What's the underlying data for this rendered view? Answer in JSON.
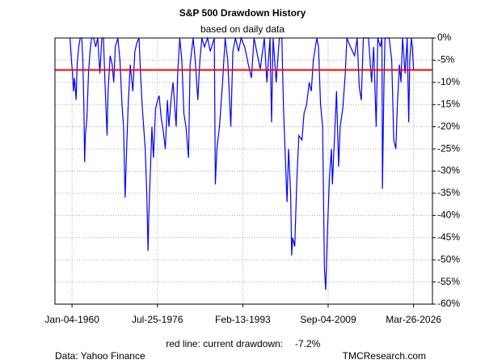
{
  "chart_data": {
    "type": "line",
    "title": "S&P 500 Drawdown History",
    "subtitle": "based on daily data",
    "annotation": "red line: current drawdown:",
    "source": "Data: Yahoo Finance",
    "credit": "TMCResearch.com",
    "xlim": [
      1956.7,
      2029.9
    ],
    "xticks": [
      {
        "value": 1960.01,
        "label": "Jan-04-1960"
      },
      {
        "value": 1976.56,
        "label": "Jul-25-1976"
      },
      {
        "value": 1993.12,
        "label": "Feb-13-1993"
      },
      {
        "value": 2009.67,
        "label": "Sep-04-2009"
      },
      {
        "value": 2026.23,
        "label": "Mar-26-2026"
      }
    ],
    "ylim": [
      -60,
      0
    ],
    "yticks": [
      {
        "value": 0,
        "label": "0%"
      },
      {
        "value": -5,
        "label": "-5%"
      },
      {
        "value": -10,
        "label": "-10%"
      },
      {
        "value": -15,
        "label": "-15%"
      },
      {
        "value": -20,
        "label": "-20%"
      },
      {
        "value": -25,
        "label": "-25%"
      },
      {
        "value": -30,
        "label": "-30%"
      },
      {
        "value": -35,
        "label": "-35%"
      },
      {
        "value": -40,
        "label": "-40%"
      },
      {
        "value": -45,
        "label": "-45%"
      },
      {
        "value": -50,
        "label": "-50%"
      },
      {
        "value": -55,
        "label": "-55%"
      },
      {
        "value": -60,
        "label": "-60%"
      }
    ],
    "grid": true,
    "reference_line": {
      "value": -7.2,
      "label": "-7.2%",
      "color": "#ff0000"
    },
    "series": [
      {
        "color": "#0000ff",
        "x": [
          1959.6,
          1959.9,
          1960.1,
          1960.3,
          1960.5,
          1960.8,
          1961.0,
          1961.3,
          1961.6,
          1961.9,
          1962.1,
          1962.3,
          1962.45,
          1962.6,
          1962.9,
          1963.2,
          1963.5,
          1963.8,
          1964.2,
          1964.6,
          1965.0,
          1965.4,
          1965.8,
          1966.1,
          1966.4,
          1966.8,
          1967.0,
          1967.4,
          1967.8,
          1968.1,
          1968.4,
          1968.9,
          1969.3,
          1969.7,
          1970.0,
          1970.3,
          1970.6,
          1970.9,
          1971.3,
          1971.8,
          1972.2,
          1972.6,
          1973.0,
          1973.3,
          1973.6,
          1973.9,
          1974.2,
          1974.5,
          1974.75,
          1974.9,
          1975.2,
          1975.5,
          1975.8,
          1976.2,
          1976.6,
          1976.9,
          1977.3,
          1977.7,
          1978.1,
          1978.5,
          1978.8,
          1979.2,
          1979.6,
          1980.2,
          1980.5,
          1980.9,
          1981.3,
          1981.7,
          1982.1,
          1982.6,
          1982.9,
          1983.5,
          1983.9,
          1984.4,
          1984.8,
          1985.2,
          1985.7,
          1986.3,
          1986.8,
          1987.6,
          1987.8,
          1988.1,
          1988.6,
          1989.2,
          1989.7,
          1990.2,
          1990.8,
          1991.2,
          1991.7,
          1992.3,
          1992.8,
          1993.5,
          1994.2,
          1994.8,
          1995.3,
          1996.5,
          1997.3,
          1997.8,
          1998.4,
          1998.7,
          1999.0,
          1999.6,
          2000.2,
          2000.7,
          2001.0,
          2001.3,
          2001.7,
          2002.0,
          2002.4,
          2002.6,
          2002.8,
          2003.2,
          2003.6,
          2004.0,
          2004.6,
          2005.0,
          2005.5,
          2006.0,
          2006.4,
          2006.8,
          2007.2,
          2007.5,
          2007.8,
          2008.2,
          2008.6,
          2008.8,
          2008.95,
          2009.2,
          2009.5,
          2009.9,
          2010.3,
          2010.5,
          2011.0,
          2011.3,
          2011.7,
          2012.0,
          2012.5,
          2013.0,
          2013.3,
          2014.0,
          2014.8,
          2015.3,
          2015.7,
          2016.1,
          2016.5,
          2017.5,
          2018.1,
          2018.5,
          2018.99,
          2019.3,
          2019.8,
          2020.1,
          2020.2,
          2020.5,
          2020.7,
          2021.5,
          2022.0,
          2022.4,
          2022.8,
          2023.1,
          2023.5,
          2023.8,
          2024.1,
          2024.6,
          2025.0,
          2025.3,
          2025.5,
          2025.8,
          2026.0,
          2026.23
        ],
        "values": [
          0,
          -5,
          -8,
          -12,
          -9,
          -14,
          -6,
          -2,
          0,
          0,
          -5,
          -15,
          -28,
          -22,
          -18,
          -8,
          -3,
          0,
          0,
          -2,
          0,
          -8,
          0,
          0,
          -10,
          -22,
          -12,
          -4,
          -6,
          -10,
          -2,
          0,
          -5,
          -15,
          -20,
          -36,
          -25,
          -15,
          -6,
          -12,
          -3,
          -1,
          0,
          -8,
          -15,
          -20,
          -25,
          -35,
          -48,
          -40,
          -30,
          -20,
          -27,
          -16,
          -14,
          -13,
          -18,
          -21,
          -25,
          -14,
          -20,
          -14,
          -10,
          -20,
          -8,
          0,
          -5,
          -17,
          -20,
          -27,
          -6,
          0,
          -5,
          -14,
          -5,
          0,
          -2,
          0,
          -3,
          0,
          -33,
          -25,
          -20,
          -10,
          0,
          -5,
          -20,
          -3,
          0,
          -3,
          0,
          -2,
          -6,
          -9,
          0,
          -7,
          0,
          -10,
          0,
          -19,
          0,
          -10,
          0,
          0,
          -15,
          -25,
          -37,
          -25,
          -35,
          -49,
          -45,
          -47,
          -32,
          -22,
          -23,
          -17,
          -15,
          -10,
          -12,
          -5,
          -2,
          0,
          -2,
          -15,
          -20,
          -38,
          -52,
          -56.8,
          -45,
          -32,
          -25,
          -33,
          -20,
          -12,
          -29,
          -20,
          -16,
          -8,
          0,
          -2,
          -4,
          0,
          -11,
          -14,
          0,
          0,
          -10,
          -2,
          -20,
          0,
          -2,
          0,
          -34,
          -10,
          0,
          0,
          -5,
          -23,
          -25,
          -15,
          -6,
          -10,
          0,
          -8,
          0,
          -19,
          -5,
          0,
          -2,
          -7.2
        ]
      }
    ]
  }
}
